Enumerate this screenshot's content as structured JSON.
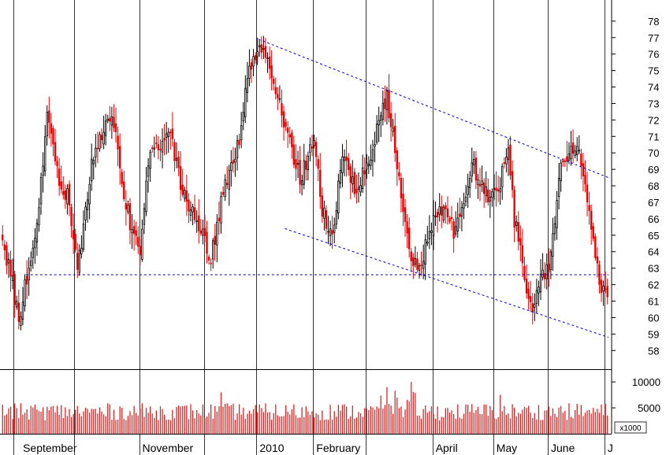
{
  "chart_data": {
    "type": "candlestick",
    "title": "",
    "price_axis": {
      "ylim": [
        57.2,
        78.9
      ],
      "ticks": [
        58,
        59,
        60,
        61,
        62,
        63,
        64,
        65,
        66,
        67,
        68,
        69,
        70,
        71,
        72,
        73,
        74,
        75,
        76,
        77,
        78
      ]
    },
    "volume_axis": {
      "ylim": [
        0,
        12000
      ],
      "ticks": [
        5000,
        10000
      ],
      "unit_label": "x1000"
    },
    "x_axis": {
      "bar_count": 300,
      "month_labels": [
        {
          "label": "September",
          "bar": 9
        },
        {
          "label": "November",
          "bar": 68
        },
        {
          "label": "2010",
          "bar": 126
        },
        {
          "label": "February",
          "bar": 154
        },
        {
          "label": "April",
          "bar": 213
        },
        {
          "label": "May",
          "bar": 243
        },
        {
          "label": "June",
          "bar": 270
        },
        {
          "label": "J",
          "bar": 298
        }
      ],
      "gridlines": [
        6,
        36,
        68,
        100,
        126,
        154,
        180,
        213,
        243,
        270,
        298
      ]
    },
    "anchors": [
      [
        0,
        64.5
      ],
      [
        5,
        62
      ],
      [
        8,
        59.9
      ],
      [
        12,
        62.5
      ],
      [
        18,
        66.5
      ],
      [
        22,
        72.5
      ],
      [
        28,
        68
      ],
      [
        32,
        67.5
      ],
      [
        37,
        63
      ],
      [
        45,
        70
      ],
      [
        54,
        72.5
      ],
      [
        58,
        69
      ],
      [
        64,
        65
      ],
      [
        68,
        64.2
      ],
      [
        72,
        69.5
      ],
      [
        82,
        71.5
      ],
      [
        88,
        68
      ],
      [
        94,
        66.5
      ],
      [
        98,
        65.5
      ],
      [
        103,
        63.5
      ],
      [
        108,
        67
      ],
      [
        117,
        71
      ],
      [
        121,
        74.5
      ],
      [
        127,
        76.8
      ],
      [
        133,
        74.5
      ],
      [
        141,
        71
      ],
      [
        147,
        68.5
      ],
      [
        154,
        70.8
      ],
      [
        158,
        66.5
      ],
      [
        163,
        65
      ],
      [
        168,
        70
      ],
      [
        175,
        67.5
      ],
      [
        182,
        70
      ],
      [
        190,
        73.5
      ],
      [
        196,
        68.5
      ],
      [
        201,
        64
      ],
      [
        206,
        63
      ],
      [
        211,
        65
      ],
      [
        216,
        67
      ],
      [
        224,
        65
      ],
      [
        232,
        69.5
      ],
      [
        238,
        67.5
      ],
      [
        244,
        67.5
      ],
      [
        250,
        70
      ],
      [
        253,
        66
      ],
      [
        258,
        62.5
      ],
      [
        262,
        60.5
      ],
      [
        266,
        62.5
      ],
      [
        270,
        63
      ],
      [
        276,
        69
      ],
      [
        280,
        70
      ],
      [
        285,
        70.5
      ],
      [
        290,
        66
      ],
      [
        294,
        63
      ],
      [
        297,
        61.5
      ],
      [
        299,
        61
      ]
    ],
    "volume_spikes": [
      {
        "bar": 108,
        "value": 8000
      },
      {
        "bar": 190,
        "value": 9000
      },
      {
        "bar": 194,
        "value": 8300
      },
      {
        "bar": 202,
        "value": 10000
      },
      {
        "bar": 246,
        "value": 7500
      }
    ],
    "trendlines": [
      {
        "style": "dashed",
        "color": "#0000cc",
        "from": {
          "bar": 127,
          "price": 76.9
        },
        "to": {
          "bar": 300,
          "price": 68.5
        }
      },
      {
        "style": "dashed",
        "color": "#0000cc",
        "from": {
          "bar": 140,
          "price": 65.4
        },
        "to": {
          "bar": 300,
          "price": 58.8
        }
      },
      {
        "style": "dashed",
        "color": "#0000cc",
        "from": {
          "bar": 12,
          "price": 62.6
        },
        "to": {
          "bar": 300,
          "price": 62.6
        }
      }
    ],
    "colors": {
      "up_candle_fill": "#ffffff",
      "up_candle_outline": "#000000",
      "down_candle": "#ee0000",
      "volume_bar": "#dd2222",
      "trendline": "#0000cc",
      "axes": "#000000"
    }
  }
}
